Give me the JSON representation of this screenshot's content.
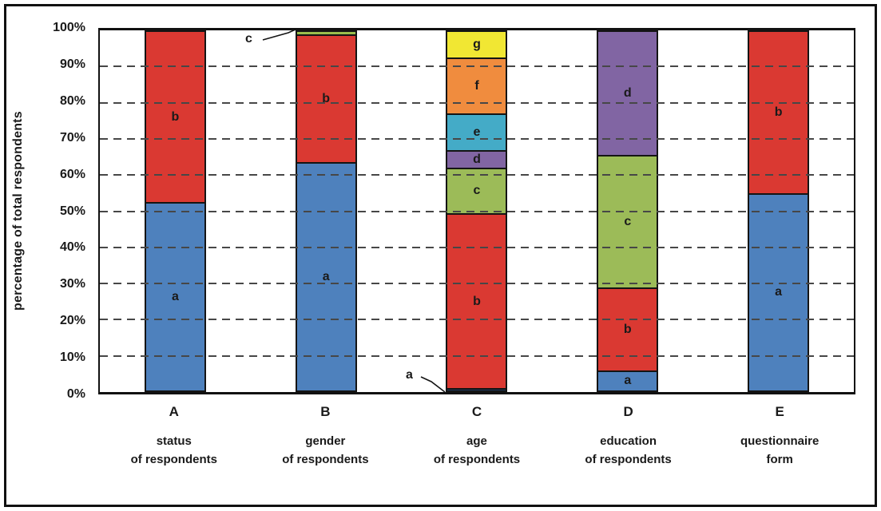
{
  "chart_data": {
    "type": "bar",
    "subtype": "100%-stacked-vertical",
    "title": "",
    "xlabel": "",
    "ylabel": "percentage of total respondents",
    "ylim": [
      0,
      100
    ],
    "grid": "horizontal dashed lines every 10%",
    "legend": "none (segments labeled with letters inside bars)",
    "y_ticks": [
      "0%",
      "10%",
      "20%",
      "30%",
      "40%",
      "50%",
      "60%",
      "70%",
      "80%",
      "90%",
      "100%"
    ],
    "categories": [
      "A",
      "B",
      "C",
      "D",
      "E"
    ],
    "bars": [
      {
        "category": "A",
        "sublabel": "status\nof respondents",
        "segments": [
          {
            "label": "a",
            "value": 52.5,
            "color": "#4E81BD"
          },
          {
            "label": "b",
            "value": 47.5,
            "color": "#DA3932"
          }
        ]
      },
      {
        "category": "B",
        "sublabel": "gender\nof respondents",
        "segments": [
          {
            "label": "a",
            "value": 63.5,
            "color": "#4E81BD"
          },
          {
            "label": "b",
            "value": 35.5,
            "color": "#DA3932"
          },
          {
            "label": "c",
            "value": 1,
            "color": "#9ABD4C"
          }
        ]
      },
      {
        "category": "C",
        "sublabel": "age\nof respondents",
        "segments": [
          {
            "label": "a",
            "value": 1,
            "color": "#1E3A5F"
          },
          {
            "label": "b",
            "value": 48.5,
            "color": "#DA3932"
          },
          {
            "label": "c",
            "value": 12.5,
            "color": "#9CBB58"
          },
          {
            "label": "d",
            "value": 5,
            "color": "#8165A3"
          },
          {
            "label": "e",
            "value": 10,
            "color": "#44ABC7"
          },
          {
            "label": "f",
            "value": 15.5,
            "color": "#F08C3E"
          },
          {
            "label": "g",
            "value": 7.5,
            "color": "#F1E733"
          }
        ]
      },
      {
        "category": "D",
        "sublabel": "education\nof respondents",
        "segments": [
          {
            "label": "a",
            "value": 6,
            "color": "#4E81BD"
          },
          {
            "label": "b",
            "value": 23,
            "color": "#DA3932"
          },
          {
            "label": "c",
            "value": 36.5,
            "color": "#9CBB58"
          },
          {
            "label": "d",
            "value": 34.5,
            "color": "#8165A3"
          }
        ]
      },
      {
        "category": "E",
        "sublabel": "questionnaire\nform",
        "segments": [
          {
            "label": "a",
            "value": 55,
            "color": "#4E81BD"
          },
          {
            "label": "b",
            "value": 45,
            "color": "#DA3932"
          }
        ]
      }
    ],
    "annotations": [
      {
        "label": "c",
        "target": "tiny green segment at top of bar B"
      },
      {
        "label": "a",
        "target": "tiny dark-blue segment at bottom of bar C"
      }
    ]
  }
}
